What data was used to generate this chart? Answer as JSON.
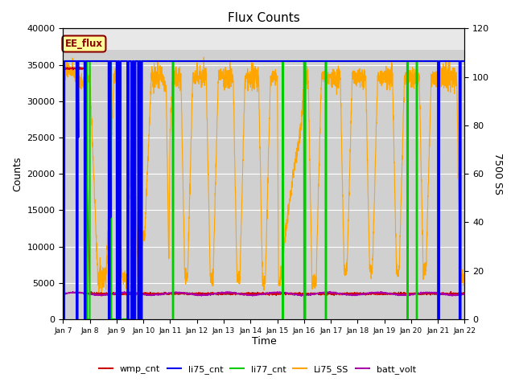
{
  "title": "Flux Counts",
  "xlabel": "Time",
  "ylabel_left": "Counts",
  "ylabel_right": "7500 SS",
  "ylim_left": [
    0,
    40000
  ],
  "ylim_right": [
    0,
    120
  ],
  "xtick_labels": [
    "Jan 7",
    "Jan 8",
    "Jan 9",
    "Jan 10",
    "Jan 11",
    "Jan 12",
    "Jan 13",
    "Jan 14",
    "Jan 15",
    "Jan 16",
    "Jan 17",
    "Jan 18",
    "Jan 19",
    "Jan 20",
    "Jan 21",
    "Jan 22"
  ],
  "annotation_text": "EE_flux",
  "plot_bg_color": "#d8d8d8",
  "plot_bg_top_color": "#e8e8e8",
  "fig_bg_color": "#ffffff",
  "colors": {
    "wmp_cnt": "#cc0000",
    "li75_cnt": "#0000ee",
    "li77_cnt": "#00cc00",
    "Li75_SS": "#ffa500",
    "batt_volt": "#aa00aa"
  },
  "legend_labels": [
    "wmp_cnt",
    "li75_cnt",
    "li77_cnt",
    "Li75_SS",
    "batt_volt"
  ],
  "yticks_left": [
    0,
    5000,
    10000,
    15000,
    20000,
    25000,
    30000,
    35000,
    40000
  ],
  "yticks_right": [
    0,
    20,
    40,
    60,
    80,
    100,
    120
  ]
}
